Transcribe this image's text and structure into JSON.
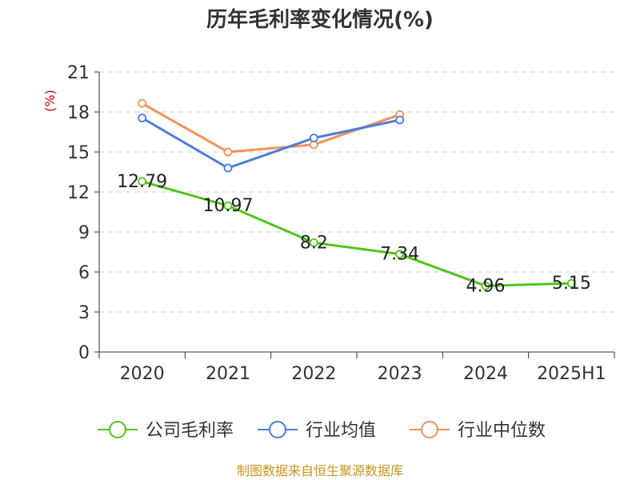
{
  "chart_data": {
    "type": "line",
    "title": "历年毛利率变化情况(%)",
    "ylabel": "(%)",
    "categories": [
      "2020",
      "2021",
      "2022",
      "2023",
      "2024",
      "2025H1"
    ],
    "ylim": [
      0,
      21
    ],
    "yticks": [
      "0",
      "3",
      "6",
      "9",
      "12",
      "15",
      "18",
      "21"
    ],
    "grid": true,
    "legend_position": "bottom",
    "series": [
      {
        "name": "公司毛利率",
        "color": "#52c41a",
        "values": [
          12.79,
          10.97,
          8.2,
          7.34,
          4.96,
          5.15
        ],
        "labels": [
          "12.79",
          "10.97",
          "8.2",
          "7.34",
          "4.96",
          "5.15"
        ]
      },
      {
        "name": "行业均值",
        "color": "#4a7fd8",
        "values": [
          17.55,
          13.8,
          16.05,
          17.4,
          null,
          null
        ]
      },
      {
        "name": "行业中位数",
        "color": "#f4915a",
        "values": [
          18.65,
          15.0,
          15.55,
          17.8,
          null,
          null
        ]
      }
    ],
    "source": "制图数据来自恒生聚源数据库"
  }
}
